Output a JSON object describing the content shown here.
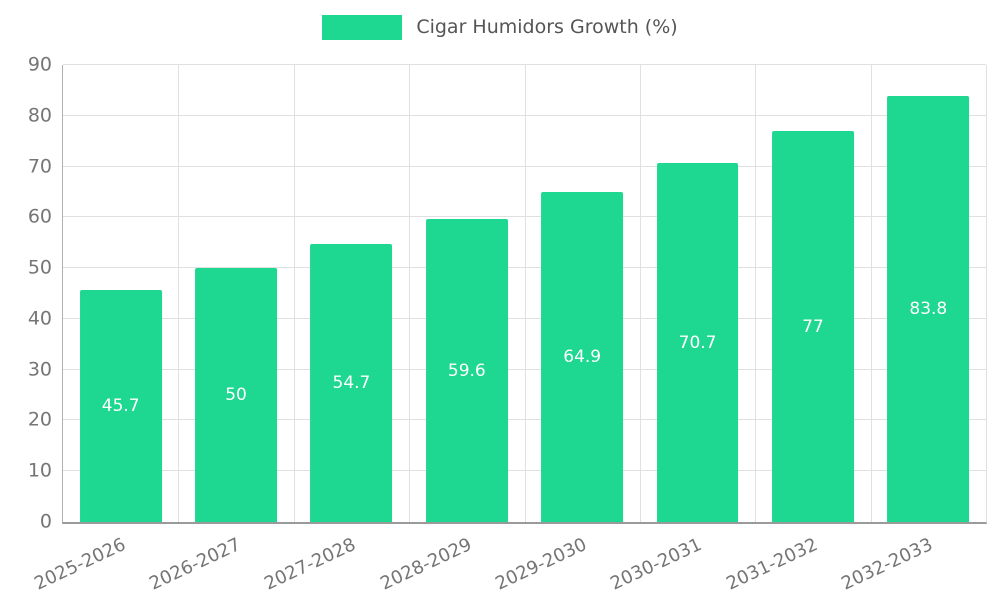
{
  "chart_data": {
    "type": "bar",
    "title": "Cigar Humidors Growth (%)",
    "categories": [
      "2025-2026",
      "2026-2027",
      "2027-2028",
      "2028-2029",
      "2029-2030",
      "2030-2031",
      "2031-2032",
      "2032-2033"
    ],
    "values": [
      45.7,
      50,
      54.7,
      59.6,
      64.9,
      70.7,
      77,
      83.8
    ],
    "value_labels": [
      "45.7",
      "50",
      "54.7",
      "59.6",
      "64.9",
      "70.7",
      "77",
      "83.8"
    ],
    "xlabel": "",
    "ylabel": "",
    "ylim": [
      0,
      90
    ],
    "ytick_step": 10,
    "grid": true,
    "legend_position": "top",
    "colors": {
      "bar": "#1ed790",
      "grid": "#e0e0e0",
      "axis": "#b0b0b0",
      "bottom_axis": "#9a9a9a",
      "tick_label": "#757575",
      "title": "#555555",
      "value_label": "#ffffff",
      "background": "#ffffff"
    }
  }
}
